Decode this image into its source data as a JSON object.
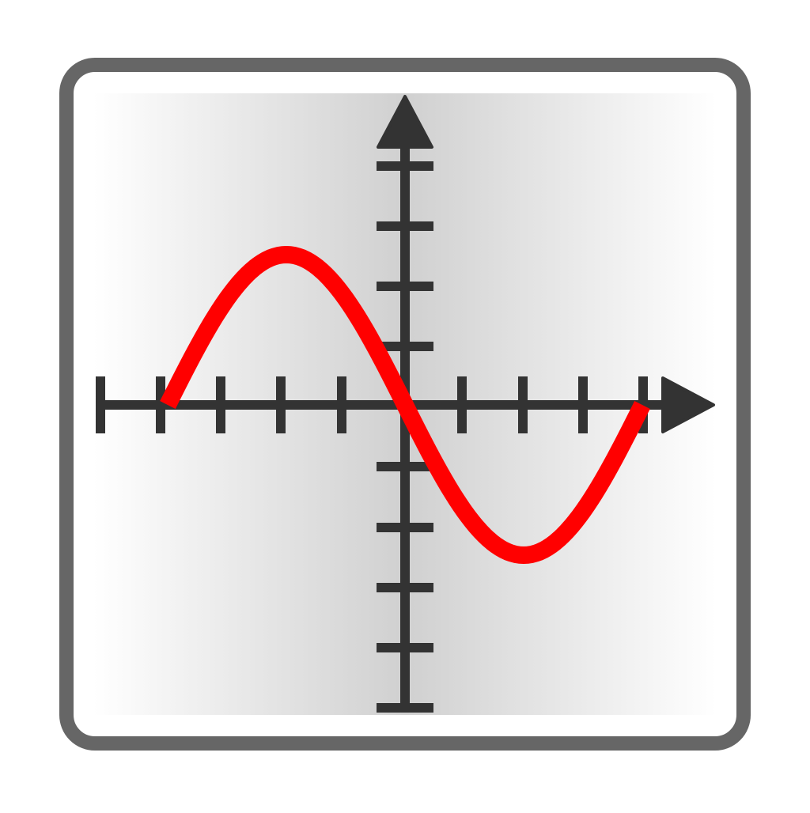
{
  "icon": {
    "kind": "function-plot-icon",
    "curve": "sine",
    "colors": {
      "frame_border": "#666666",
      "frame_fill": "#ffffff",
      "panel_edge": "#ffffff",
      "panel_center": "#d0d0d0",
      "axes": "#333333",
      "curve": "#ff0000"
    }
  }
}
